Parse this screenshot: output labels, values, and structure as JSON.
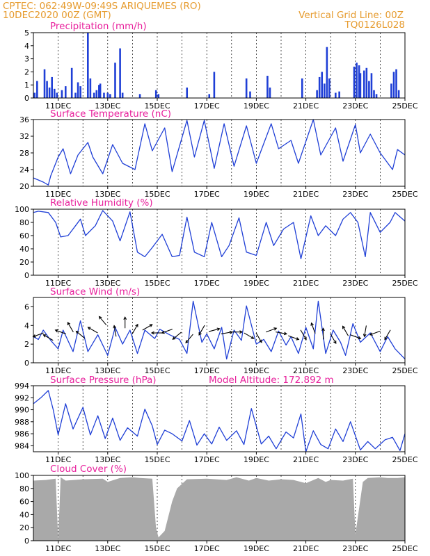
{
  "header": {
    "line1": "CPTEC:   062:49W-09:49S   ARIQUEMES (RO)",
    "line2": "10DEC2020 00Z (GMT)",
    "grid_note": "Vertical Grid Line: 00Z",
    "run_id": "TQ0126L028"
  },
  "x_axis": {
    "date_labels": [
      "11DEC",
      "13DEC",
      "15DEC",
      "17DEC",
      "19DEC",
      "21DEC",
      "23DEC",
      "25DEC"
    ],
    "date_positions_day": [
      1,
      3,
      5,
      7,
      9,
      11,
      13,
      15
    ],
    "range_days": [
      0,
      15
    ],
    "vertical_grid": "dashed at 00Z"
  },
  "colors": {
    "header": "#e69b2e",
    "panel_title": "#e8209c",
    "series": "#1f3fd6",
    "cloud_fill": "#a9a9a9",
    "wind_arrow": "#000000"
  },
  "chart_data": [
    {
      "type": "bar",
      "title": "Precipitation (mm/h)",
      "ylim": [
        0,
        5
      ],
      "yticks": [
        0,
        1,
        2,
        3,
        4,
        5
      ],
      "series": [
        {
          "x_day": [
            0.05,
            0.15,
            0.45,
            0.55,
            0.65,
            0.75,
            0.85,
            0.95,
            1.15,
            1.3,
            1.55,
            1.7,
            1.8,
            1.9,
            2.2,
            2.3,
            2.45,
            2.55,
            2.65,
            2.7,
            2.85,
            3.0,
            3.1,
            3.3,
            3.5,
            3.6,
            4.3,
            4.95,
            5.05,
            6.2,
            7.1,
            7.3,
            8.6,
            8.75,
            9.45,
            9.55,
            10.85,
            11.45,
            11.55,
            11.65,
            11.75,
            11.85,
            11.95,
            12.2,
            12.35,
            12.95,
            13.05,
            13.15,
            13.2,
            13.35,
            13.45,
            13.55,
            13.65,
            13.75,
            13.85,
            14.45,
            14.55,
            14.65,
            14.75
          ],
          "values": [
            0.4,
            1.3,
            2.2,
            1.3,
            0.8,
            1.6,
            0.7,
            0.4,
            0.6,
            0.9,
            2.3,
            0.4,
            1.2,
            0.9,
            5.0,
            1.5,
            0.4,
            0.6,
            1.0,
            1.1,
            0.4,
            0.4,
            0.3,
            2.7,
            3.8,
            0.4,
            0.3,
            0.6,
            0.3,
            0.8,
            0.3,
            2.0,
            1.5,
            0.5,
            1.7,
            0.8,
            1.5,
            0.6,
            1.6,
            2.0,
            1.1,
            3.9,
            1.5,
            0.4,
            0.5,
            2.4,
            2.7,
            2.5,
            1.9,
            2.1,
            2.3,
            1.3,
            1.9,
            0.6,
            0.3,
            1.1,
            2.0,
            2.2,
            0.6
          ]
        }
      ]
    },
    {
      "type": "line",
      "title": "Surface Temperature (nC)",
      "ylim": [
        20,
        36
      ],
      "yticks": [
        20,
        24,
        28,
        32,
        36
      ],
      "series": [
        {
          "x_day": [
            0,
            0.4,
            0.6,
            0.7,
            1.0,
            1.2,
            1.5,
            1.8,
            2.2,
            2.4,
            2.8,
            3.2,
            3.6,
            4.1,
            4.5,
            4.8,
            5.3,
            5.6,
            6.2,
            6.5,
            6.9,
            7.3,
            7.7,
            8.1,
            8.6,
            9.0,
            9.6,
            9.9,
            10.4,
            10.7,
            11.3,
            11.6,
            12.2,
            12.5,
            13.0,
            13.2,
            13.6,
            14.0,
            14.5,
            14.7,
            15.0
          ],
          "values": [
            22,
            21,
            20.3,
            22.5,
            27,
            29,
            23,
            27.5,
            30.5,
            27,
            23,
            30,
            25.5,
            24,
            35,
            28.5,
            34,
            23.5,
            35.8,
            27,
            35.8,
            24.3,
            35,
            24.8,
            34.5,
            25.5,
            35,
            29,
            31,
            25.5,
            36,
            27.5,
            34,
            26,
            34.8,
            28,
            32.5,
            28,
            24,
            28.8,
            27.5
          ]
        }
      ]
    },
    {
      "type": "line",
      "title": "Relative Humidity (%)",
      "ylim": [
        0,
        100
      ],
      "yticks": [
        0,
        20,
        40,
        60,
        80,
        100
      ],
      "series": [
        {
          "x_day": [
            0,
            0.2,
            0.6,
            0.9,
            1.1,
            1.4,
            1.7,
            1.9,
            2.1,
            2.5,
            2.8,
            3.2,
            3.5,
            3.9,
            4.2,
            4.5,
            4.8,
            5.2,
            5.6,
            5.9,
            6.2,
            6.5,
            6.9,
            7.2,
            7.6,
            7.9,
            8.3,
            8.6,
            9.0,
            9.4,
            9.7,
            10.1,
            10.5,
            10.8,
            11.2,
            11.5,
            11.8,
            12.2,
            12.5,
            12.8,
            13.1,
            13.4,
            13.6,
            14.0,
            14.4,
            14.6,
            15.0
          ],
          "values": [
            95,
            97,
            95,
            80,
            58,
            60,
            75,
            85,
            60,
            75,
            98,
            82,
            52,
            96,
            35,
            28,
            42,
            62,
            28,
            30,
            88,
            35,
            28,
            80,
            28,
            45,
            87,
            35,
            30,
            80,
            45,
            70,
            80,
            25,
            90,
            60,
            75,
            60,
            85,
            95,
            80,
            28,
            95,
            65,
            80,
            95,
            82
          ]
        }
      ]
    },
    {
      "type": "line",
      "title": "Surface Wind (m/s)",
      "ylim": [
        0,
        7
      ],
      "yticks": [
        0,
        2,
        4,
        6
      ],
      "series": [
        {
          "x_day": [
            0,
            0.2,
            0.4,
            0.7,
            1.0,
            1.2,
            1.6,
            1.9,
            2.2,
            2.6,
            3.0,
            3.3,
            3.6,
            3.9,
            4.2,
            4.5,
            4.9,
            5.1,
            5.5,
            5.9,
            6.2,
            6.45,
            6.8,
            7.0,
            7.3,
            7.6,
            7.8,
            8.1,
            8.4,
            8.6,
            9.0,
            9.3,
            9.6,
            9.9,
            10.2,
            10.4,
            10.7,
            11.0,
            11.3,
            11.5,
            11.8,
            12.1,
            12.4,
            12.6,
            12.9,
            13.2,
            13.6,
            14.0,
            14.3,
            14.6,
            15.0
          ],
          "values": [
            2.8,
            2.5,
            3.5,
            2.4,
            1.5,
            3.5,
            1.2,
            4.5,
            1.2,
            3.0,
            0.8,
            3.8,
            2.0,
            3.5,
            1.0,
            3.5,
            2.6,
            3.6,
            3.0,
            2.5,
            1.0,
            6.6,
            2.2,
            3.1,
            1.5,
            3.8,
            0.4,
            3.5,
            2.4,
            6.1,
            2.0,
            2.5,
            1.2,
            3.4,
            1.9,
            2.8,
            1.0,
            3.8,
            1.5,
            6.6,
            1.0,
            3.5,
            2.2,
            0.8,
            4.2,
            2.2,
            3.2,
            1.2,
            2.8,
            1.5,
            0.4
          ]
        }
      ],
      "wind_vectors": {
        "x_day": [
          0.2,
          0.6,
          1.1,
          1.5,
          1.9,
          2.4,
          2.8,
          3.3,
          3.7,
          4.1,
          4.6,
          5.0,
          5.4,
          5.8,
          6.3,
          6.8,
          7.3,
          7.8,
          8.2,
          8.7,
          9.1,
          9.6,
          10.0,
          10.5,
          10.9,
          11.3,
          11.7,
          12.1,
          12.6,
          13.0,
          13.4,
          13.8,
          14.3
        ],
        "y_value": [
          3.0,
          2.7,
          3.3,
          3.8,
          3.0,
          3.5,
          4.5,
          3.4,
          4.3,
          3.6,
          3.8,
          3.2,
          3.4,
          2.9,
          2.6,
          3.5,
          3.5,
          3.2,
          3.3,
          2.9,
          2.7,
          3.5,
          3.2,
          2.7,
          3.0,
          3.7,
          3.1,
          2.6,
          3.4,
          2.8,
          3.4,
          3.2,
          3.0
        ],
        "direction_deg": [
          200,
          150,
          160,
          120,
          140,
          150,
          130,
          100,
          90,
          60,
          30,
          180,
          200,
          220,
          230,
          240,
          15,
          10,
          0,
          330,
          300,
          20,
          350,
          340,
          300,
          110,
          90,
          300,
          120,
          340,
          260,
          200,
          240
        ]
      }
    },
    {
      "type": "line",
      "title": "Surface Pressure (hPa)",
      "annotation": "Model Altitude: 172.892  m",
      "ylim": [
        983,
        994
      ],
      "yticks": [
        984,
        986,
        988,
        990,
        992,
        994
      ],
      "series": [
        {
          "x_day": [
            0,
            0.3,
            0.6,
            0.8,
            1.0,
            1.3,
            1.6,
            2.0,
            2.3,
            2.6,
            2.9,
            3.2,
            3.5,
            3.8,
            4.2,
            4.5,
            4.8,
            5.0,
            5.3,
            5.6,
            6.0,
            6.3,
            6.6,
            6.9,
            7.2,
            7.5,
            7.8,
            8.2,
            8.5,
            8.8,
            9.2,
            9.5,
            9.8,
            10.2,
            10.5,
            10.8,
            11.0,
            11.3,
            11.6,
            11.9,
            12.2,
            12.5,
            12.8,
            13.2,
            13.5,
            13.8,
            14.2,
            14.5,
            14.8,
            15.0
          ],
          "values": [
            991,
            992,
            993.2,
            990,
            985.8,
            991,
            986.8,
            990.4,
            985.8,
            989,
            985.2,
            988.6,
            984.9,
            987,
            985.6,
            990.1,
            987.3,
            984.2,
            986.6,
            986,
            984.8,
            988.2,
            984.1,
            986,
            984.3,
            987.1,
            984.9,
            986.5,
            984.2,
            990.2,
            984.3,
            985.6,
            983.5,
            986.3,
            985.3,
            989.3,
            983,
            986.5,
            984.2,
            983.5,
            986.8,
            984.7,
            988,
            983.3,
            984.7,
            983.5,
            985,
            985.4,
            983.2,
            986
          ]
        }
      ]
    },
    {
      "type": "area",
      "title": "Cloud Cover (%)",
      "ylim": [
        0,
        100
      ],
      "yticks": [
        0,
        20,
        40,
        60,
        80,
        100
      ],
      "series": [
        {
          "x_day": [
            0,
            0.5,
            0.9,
            1.0,
            1.1,
            1.3,
            2.0,
            2.8,
            3.0,
            3.5,
            4.0,
            4.3,
            4.8,
            4.95,
            5.05,
            5.3,
            5.6,
            5.8,
            6.2,
            7.0,
            7.8,
            8.2,
            8.7,
            9.0,
            9.5,
            10.0,
            10.5,
            11.0,
            11.5,
            11.8,
            12.0,
            12.5,
            12.9,
            13.0,
            13.3,
            13.5,
            14.0,
            14.3,
            14.7,
            15.0
          ],
          "values": [
            92,
            93,
            95,
            2,
            97,
            92,
            94,
            95,
            90,
            96,
            97,
            96,
            95,
            20,
            5,
            15,
            60,
            80,
            94,
            95,
            93,
            97,
            92,
            96,
            92,
            94,
            93,
            88,
            96,
            90,
            93,
            92,
            95,
            10,
            90,
            96,
            97,
            96,
            96,
            97
          ]
        }
      ]
    }
  ]
}
